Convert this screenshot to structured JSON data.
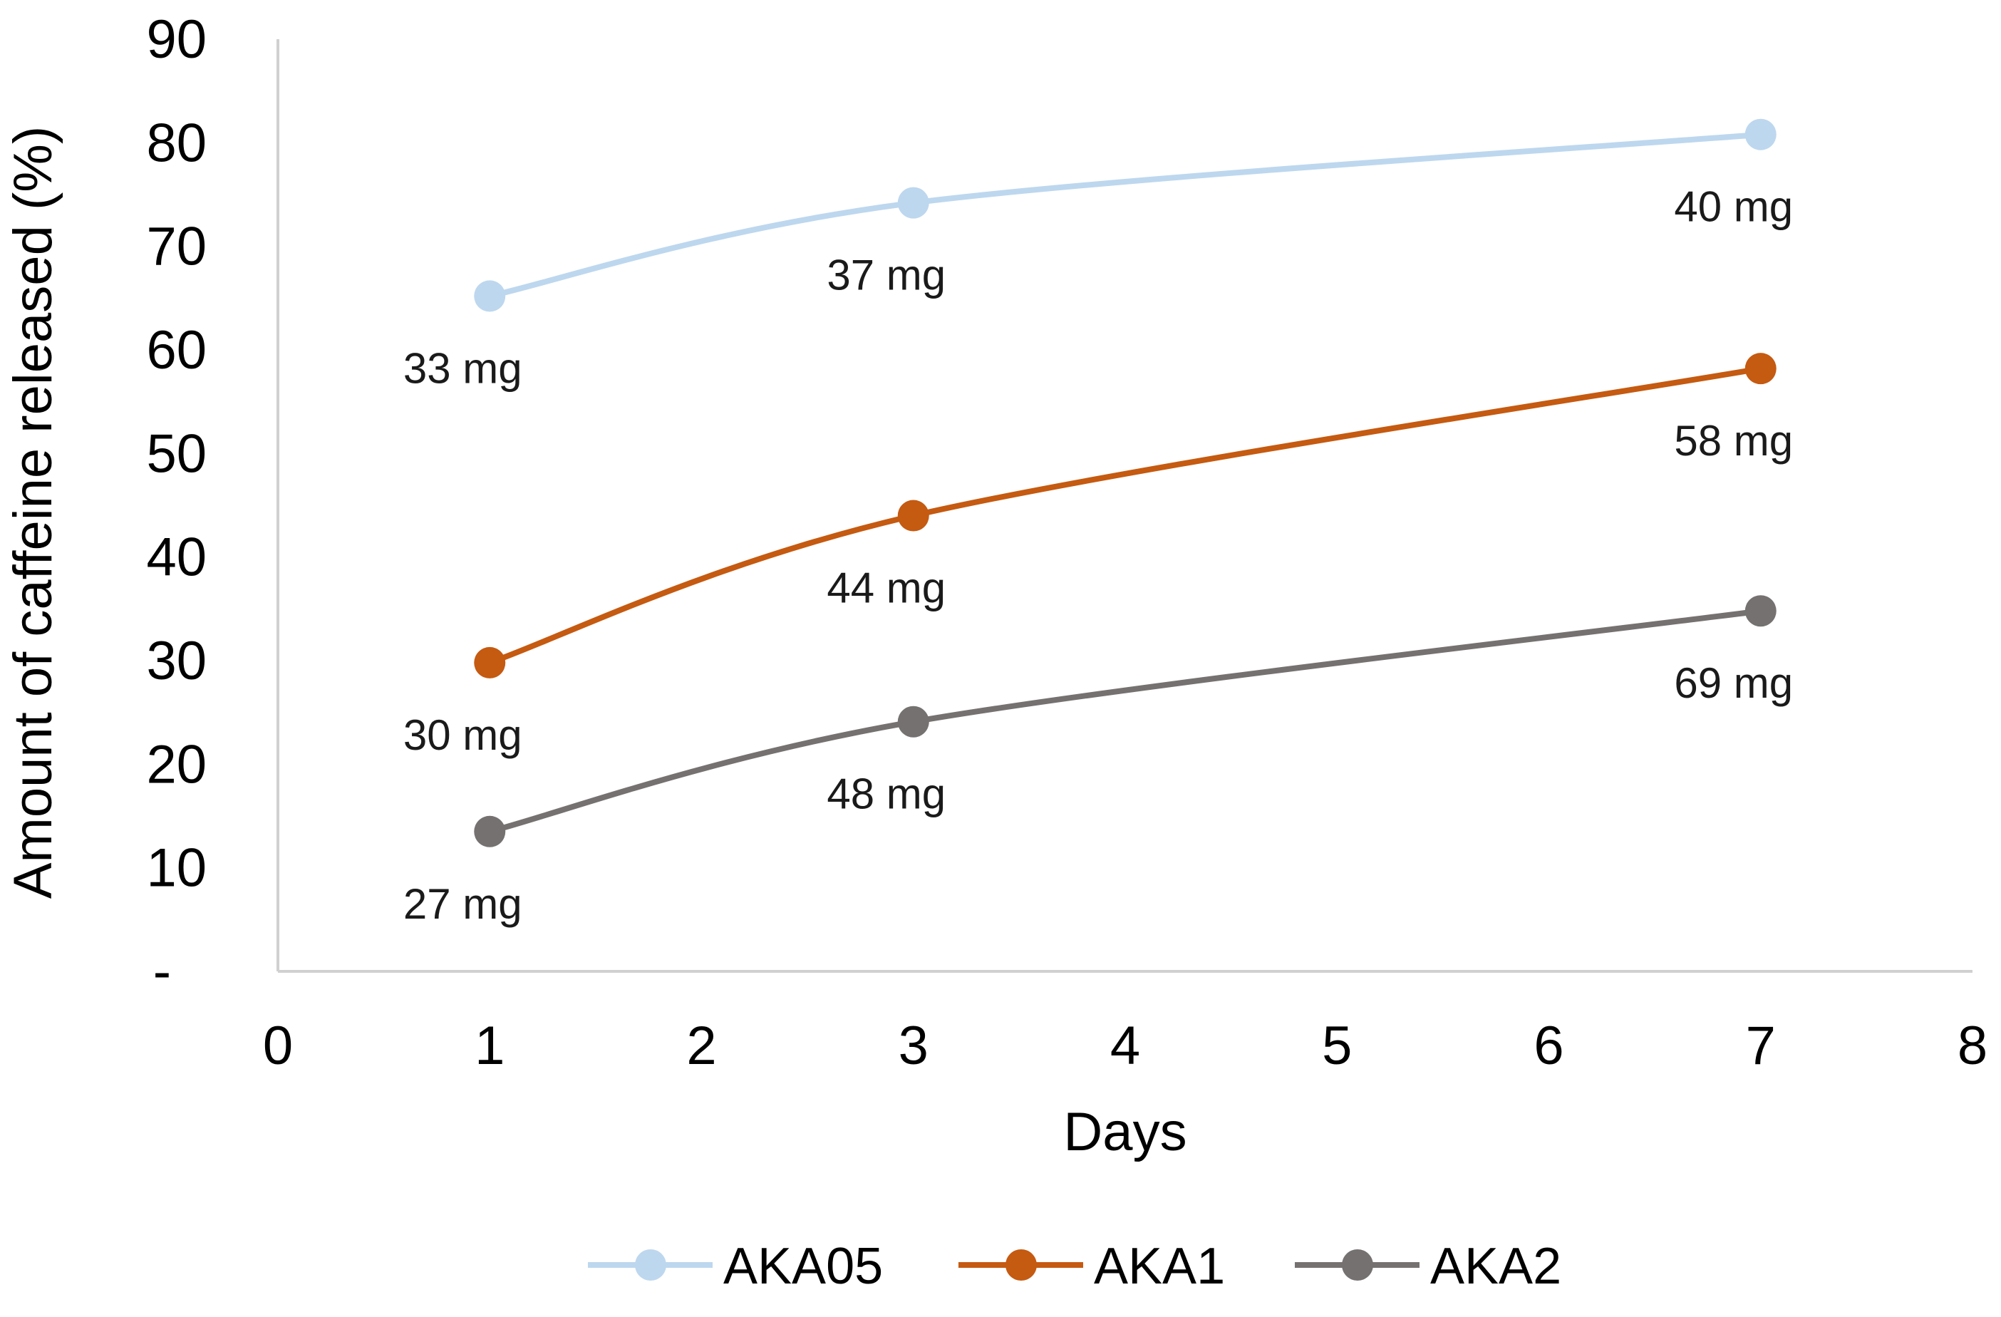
{
  "chart_data": {
    "type": "line",
    "title": "",
    "xlabel": "Days",
    "ylabel": "Amount of caffeine released (%)",
    "xlim": [
      0,
      8
    ],
    "ylim": [
      0,
      90
    ],
    "x_ticks": [
      "0",
      "1",
      "2",
      "3",
      "4",
      "5",
      "6",
      "7",
      "8"
    ],
    "y_ticks": [
      "-",
      "10",
      "20",
      "30",
      "40",
      "50",
      "60",
      "70",
      "80",
      "90"
    ],
    "grid": false,
    "legend_position": "bottom",
    "smooth": true,
    "series": [
      {
        "name": "AKA05",
        "color": "#bdd7ee",
        "x": [
          1,
          3,
          7
        ],
        "y": [
          65.2,
          74.2,
          80.8
        ],
        "labels": [
          "33 mg",
          "37 mg",
          "40 mg"
        ]
      },
      {
        "name": "AKA1",
        "color": "#c55a11",
        "x": [
          1,
          3,
          7
        ],
        "y": [
          29.8,
          44.0,
          58.2
        ],
        "labels": [
          "30 mg",
          "44 mg",
          "58 mg"
        ]
      },
      {
        "name": "AKA2",
        "color": "#767171",
        "x": [
          1,
          3,
          7
        ],
        "y": [
          13.5,
          24.1,
          34.8
        ],
        "labels": [
          "27 mg",
          "48 mg",
          "69 mg"
        ]
      }
    ]
  }
}
